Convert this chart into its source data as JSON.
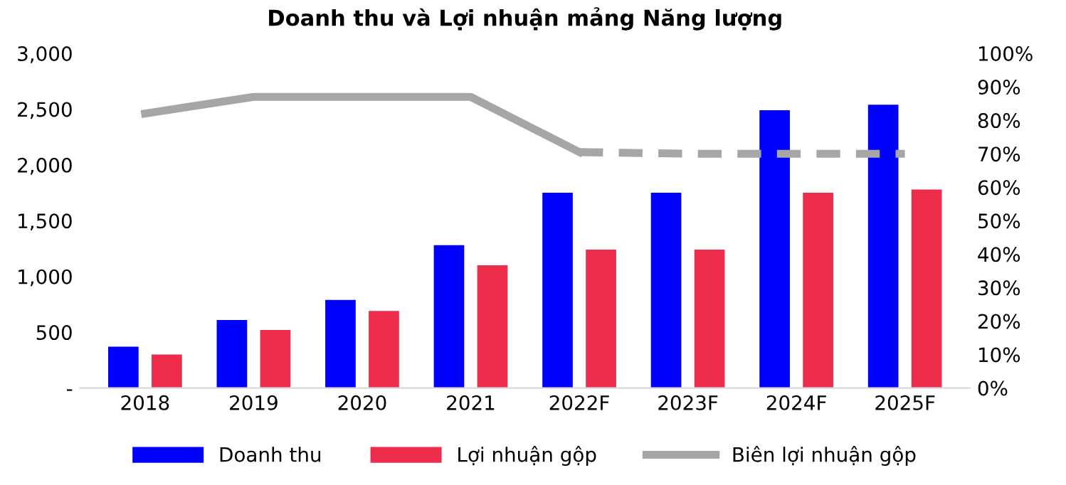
{
  "chart_data": {
    "type": "bar",
    "title": "Doanh thu và Lợi nhuận mảng Năng lượng",
    "categories": [
      "2018",
      "2019",
      "2020",
      "2021",
      "2022F",
      "2023F",
      "2024F",
      "2025F"
    ],
    "series": [
      {
        "name": "Doanh thu",
        "color": "#0000ff",
        "values": [
          370,
          610,
          790,
          1280,
          1750,
          1750,
          2490,
          2540
        ]
      },
      {
        "name": "Lợi nhuận gộp",
        "color": "#ee2c4c",
        "values": [
          300,
          520,
          690,
          1100,
          1240,
          1240,
          1750,
          1780
        ]
      },
      {
        "name": "Biên lợi nhuận gộp",
        "type": "line",
        "axis": "y2",
        "color": "#a6a6a6",
        "line_style": "solid",
        "values": [
          82,
          87,
          87,
          87,
          70.5,
          null,
          null,
          null
        ]
      },
      {
        "type": "line",
        "axis": "y2",
        "color": "#a6a6a6",
        "line_style": "dashed",
        "values": [
          null,
          null,
          null,
          null,
          70.5,
          70,
          70,
          70
        ]
      }
    ],
    "ylim": [
      0,
      3000
    ],
    "yticks": [
      {
        "value": 0,
        "label": "-"
      },
      500,
      {
        "value": 1000,
        "label": "1,000"
      },
      {
        "value": 1500,
        "label": "1,500"
      },
      {
        "value": 2000,
        "label": "2,000"
      },
      {
        "value": 2500,
        "label": "2,500"
      },
      {
        "value": 3000,
        "label": "3,000"
      }
    ],
    "y2lim": [
      0,
      100
    ],
    "y2ticks": [
      {
        "value": 0,
        "label": "0%"
      },
      {
        "value": 10,
        "label": "10%"
      },
      {
        "value": 20,
        "label": "20%"
      },
      {
        "value": 30,
        "label": "30%"
      },
      {
        "value": 40,
        "label": "40%"
      },
      {
        "value": 50,
        "label": "50%"
      },
      {
        "value": 60,
        "label": "60%"
      },
      {
        "value": 70,
        "label": "70%"
      },
      {
        "value": 80,
        "label": "80%"
      },
      {
        "value": 90,
        "label": "90%"
      },
      {
        "value": 100,
        "label": "100%"
      }
    ],
    "grid": false,
    "legend": "bottom"
  }
}
